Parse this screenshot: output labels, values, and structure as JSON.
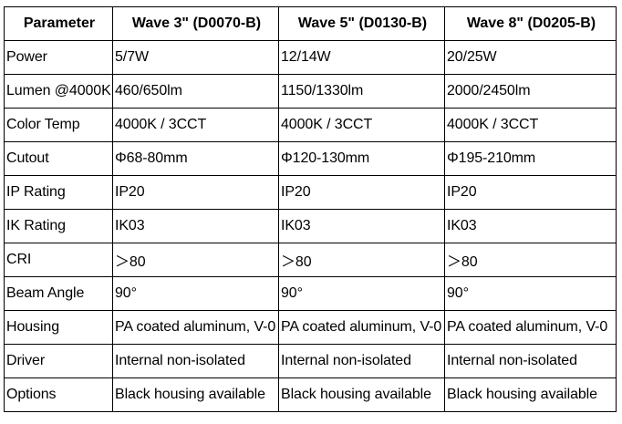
{
  "table": {
    "headers": [
      "Parameter",
      "Wave 3\" (D0070-B)",
      "Wave 5\" (D0130-B)",
      "Wave 8\" (D0205-B)"
    ],
    "rows": [
      [
        "Power",
        "5/7W",
        "12/14W",
        "20/25W"
      ],
      [
        "Lumen @4000K",
        "460/650lm",
        "1150/1330lm",
        "2000/2450lm"
      ],
      [
        "Color Temp",
        "4000K / 3CCT",
        "4000K / 3CCT",
        "4000K / 3CCT"
      ],
      [
        "Cutout",
        "Φ68-80mm",
        "Φ120-130mm",
        "Φ195-210mm"
      ],
      [
        "IP Rating",
        "IP20",
        "IP20",
        "IP20"
      ],
      [
        "IK Rating",
        "IK03",
        "IK03",
        "IK03"
      ],
      [
        "CRI",
        "＞80",
        "＞80",
        "＞80"
      ],
      [
        "Beam Angle",
        "90°",
        "90°",
        "90°"
      ],
      [
        "Housing",
        "PA coated aluminum, V-0",
        "PA coated aluminum, V-0",
        "PA coated aluminum, V-0"
      ],
      [
        "Driver",
        "Internal non-isolated",
        "Internal non-isolated",
        "Internal non-isolated"
      ],
      [
        "Options",
        "Black housing available",
        "Black housing available",
        "Black housing available"
      ]
    ]
  }
}
